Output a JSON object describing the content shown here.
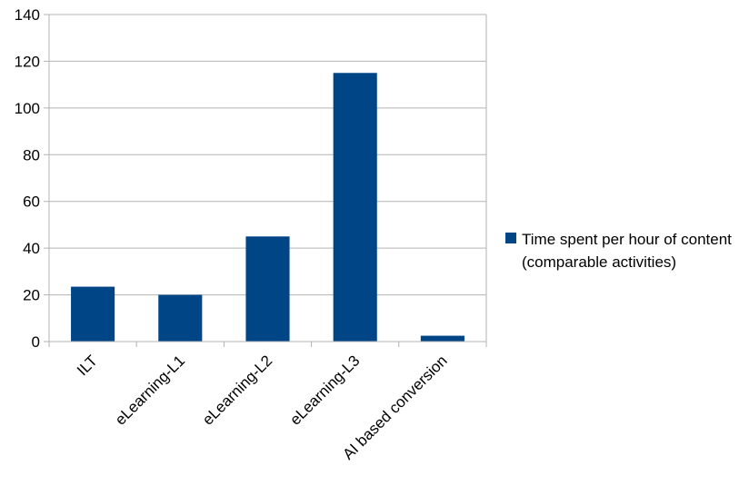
{
  "chart_data": {
    "type": "bar",
    "categories": [
      "ILT",
      "eLearning-L1",
      "eLearning-L2",
      "eLearning-L3",
      "AI based conversion"
    ],
    "series": [
      {
        "name": "Time spent per hour of content (comparable activities)",
        "values": [
          23.5,
          20,
          45,
          115,
          2.5
        ],
        "color": "#004586"
      }
    ],
    "ylim": [
      0,
      140
    ],
    "yticks": [
      0,
      20,
      40,
      60,
      80,
      100,
      120,
      140
    ],
    "grid": true,
    "legend_position": "right",
    "legend_lines": [
      "Time spent per hour of content",
      "(comparable activities)"
    ],
    "title": "",
    "xlabel": "",
    "ylabel": ""
  }
}
